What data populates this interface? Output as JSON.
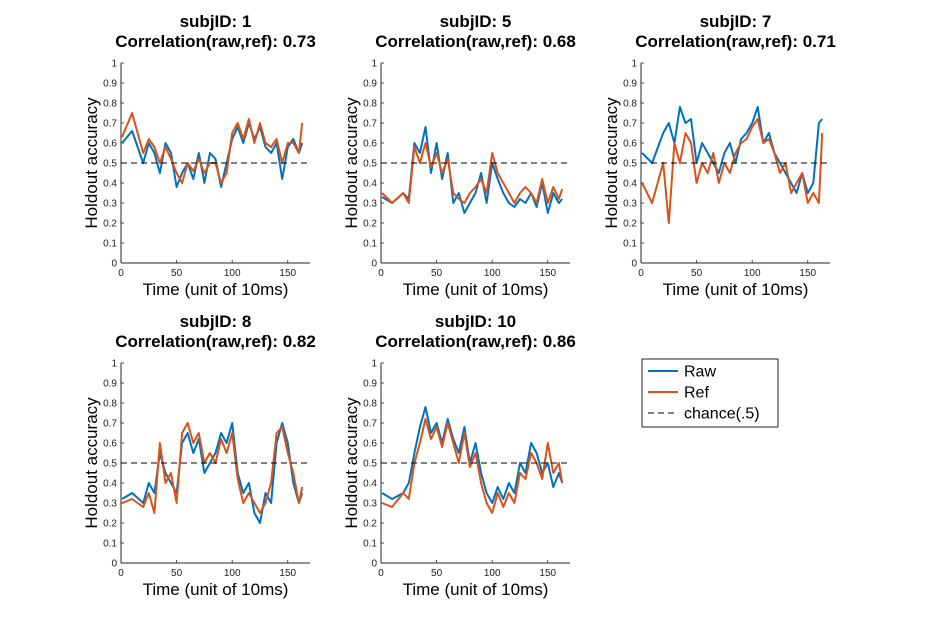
{
  "colors": {
    "raw": "#0072BD",
    "ref": "#D95319",
    "chance": "#000000",
    "axis": "#262626",
    "legend_border": "#262626"
  },
  "legend": {
    "placement": "right of bottom row",
    "entries": [
      {
        "label": "Raw",
        "color": "#0072BD",
        "style": "solid"
      },
      {
        "label": "Ref",
        "color": "#D95319",
        "style": "solid"
      },
      {
        "label": "chance(.5)",
        "color": "#000000",
        "style": "dashed"
      }
    ]
  },
  "chart_data": [
    {
      "type": "line",
      "title": [
        "subjID: 1",
        "Correlation(raw,ref): 0.73"
      ],
      "xlabel": "Time (unit of 10ms)",
      "ylabel": "Holdout accuracy",
      "xlim": [
        0,
        170
      ],
      "ylim": [
        0,
        1
      ],
      "xticks": [
        0,
        50,
        100,
        150
      ],
      "yticks": [
        0,
        0.1,
        0.2,
        0.3,
        0.4,
        0.5,
        0.6,
        0.7,
        0.8,
        0.9,
        1
      ],
      "chance": 0.5,
      "series": [
        {
          "name": "Raw",
          "x": [
            1,
            10,
            20,
            25,
            30,
            35,
            40,
            45,
            50,
            55,
            60,
            65,
            70,
            75,
            80,
            85,
            90,
            95,
            100,
            105,
            110,
            115,
            120,
            125,
            130,
            135,
            140,
            145,
            150,
            155,
            160,
            163
          ],
          "values": [
            0.6,
            0.66,
            0.5,
            0.6,
            0.55,
            0.45,
            0.6,
            0.55,
            0.38,
            0.45,
            0.5,
            0.42,
            0.55,
            0.4,
            0.55,
            0.52,
            0.38,
            0.5,
            0.62,
            0.68,
            0.6,
            0.7,
            0.62,
            0.68,
            0.58,
            0.55,
            0.6,
            0.42,
            0.58,
            0.62,
            0.55,
            0.6
          ]
        },
        {
          "name": "Ref",
          "x": [
            1,
            10,
            20,
            25,
            30,
            35,
            40,
            45,
            50,
            55,
            60,
            65,
            70,
            75,
            80,
            85,
            90,
            95,
            100,
            105,
            110,
            115,
            120,
            125,
            130,
            135,
            140,
            145,
            150,
            155,
            160,
            163
          ],
          "values": [
            0.63,
            0.75,
            0.55,
            0.62,
            0.58,
            0.5,
            0.58,
            0.52,
            0.45,
            0.4,
            0.5,
            0.46,
            0.52,
            0.45,
            0.5,
            0.5,
            0.4,
            0.45,
            0.65,
            0.7,
            0.62,
            0.72,
            0.6,
            0.7,
            0.6,
            0.58,
            0.62,
            0.5,
            0.6,
            0.6,
            0.55,
            0.7
          ]
        }
      ]
    },
    {
      "type": "line",
      "title": [
        "subjID: 5",
        "Correlation(raw,ref): 0.68"
      ],
      "xlabel": "Time (unit of 10ms)",
      "ylabel": "Holdout accuracy",
      "xlim": [
        0,
        170
      ],
      "ylim": [
        0,
        1
      ],
      "xticks": [
        0,
        50,
        100,
        150
      ],
      "yticks": [
        0,
        0.1,
        0.2,
        0.3,
        0.4,
        0.5,
        0.6,
        0.7,
        0.8,
        0.9,
        1
      ],
      "chance": 0.5,
      "series": [
        {
          "name": "Raw",
          "x": [
            1,
            10,
            20,
            25,
            30,
            35,
            40,
            45,
            50,
            55,
            60,
            65,
            70,
            75,
            80,
            85,
            90,
            95,
            100,
            105,
            110,
            115,
            120,
            125,
            130,
            135,
            140,
            145,
            150,
            155,
            160,
            163
          ],
          "values": [
            0.33,
            0.3,
            0.35,
            0.32,
            0.6,
            0.55,
            0.68,
            0.45,
            0.6,
            0.42,
            0.55,
            0.3,
            0.35,
            0.25,
            0.3,
            0.35,
            0.45,
            0.3,
            0.5,
            0.42,
            0.35,
            0.3,
            0.28,
            0.32,
            0.3,
            0.35,
            0.28,
            0.4,
            0.25,
            0.35,
            0.3,
            0.32
          ]
        },
        {
          "name": "Ref",
          "x": [
            1,
            10,
            20,
            25,
            30,
            35,
            40,
            45,
            50,
            55,
            60,
            65,
            70,
            75,
            80,
            85,
            90,
            95,
            100,
            105,
            110,
            115,
            120,
            125,
            130,
            135,
            140,
            145,
            150,
            155,
            160,
            163
          ],
          "values": [
            0.35,
            0.3,
            0.35,
            0.3,
            0.58,
            0.5,
            0.6,
            0.48,
            0.55,
            0.45,
            0.52,
            0.35,
            0.32,
            0.3,
            0.35,
            0.38,
            0.42,
            0.35,
            0.55,
            0.45,
            0.4,
            0.35,
            0.3,
            0.35,
            0.38,
            0.35,
            0.3,
            0.42,
            0.3,
            0.38,
            0.32,
            0.37
          ]
        }
      ]
    },
    {
      "type": "line",
      "title": [
        "subjID: 7",
        "Correlation(raw,ref): 0.71"
      ],
      "xlabel": "Time (unit of 10ms)",
      "ylabel": "Holdout accuracy",
      "xlim": [
        0,
        170
      ],
      "ylim": [
        0,
        1
      ],
      "xticks": [
        0,
        50,
        100,
        150
      ],
      "yticks": [
        0,
        0.1,
        0.2,
        0.3,
        0.4,
        0.5,
        0.6,
        0.7,
        0.8,
        0.9,
        1
      ],
      "chance": 0.5,
      "series": [
        {
          "name": "Raw",
          "x": [
            1,
            10,
            20,
            25,
            30,
            35,
            40,
            45,
            50,
            55,
            60,
            65,
            70,
            75,
            80,
            85,
            90,
            95,
            100,
            105,
            110,
            115,
            120,
            125,
            130,
            135,
            140,
            145,
            150,
            155,
            160,
            163
          ],
          "values": [
            0.55,
            0.5,
            0.65,
            0.7,
            0.6,
            0.78,
            0.7,
            0.72,
            0.5,
            0.6,
            0.55,
            0.5,
            0.45,
            0.55,
            0.6,
            0.5,
            0.62,
            0.65,
            0.7,
            0.78,
            0.6,
            0.65,
            0.55,
            0.5,
            0.45,
            0.4,
            0.35,
            0.45,
            0.35,
            0.4,
            0.7,
            0.72
          ]
        },
        {
          "name": "Ref",
          "x": [
            1,
            10,
            20,
            25,
            30,
            35,
            40,
            45,
            50,
            55,
            60,
            65,
            70,
            75,
            80,
            85,
            90,
            95,
            100,
            105,
            110,
            115,
            120,
            125,
            130,
            135,
            140,
            145,
            150,
            155,
            160,
            163
          ],
          "values": [
            0.4,
            0.3,
            0.5,
            0.2,
            0.6,
            0.5,
            0.65,
            0.6,
            0.4,
            0.5,
            0.45,
            0.55,
            0.4,
            0.5,
            0.45,
            0.55,
            0.6,
            0.62,
            0.68,
            0.72,
            0.6,
            0.62,
            0.55,
            0.45,
            0.5,
            0.35,
            0.4,
            0.45,
            0.3,
            0.35,
            0.3,
            0.65
          ]
        }
      ]
    },
    {
      "type": "line",
      "title": [
        "subjID: 8",
        "Correlation(raw,ref): 0.82"
      ],
      "xlabel": "Time (unit of 10ms)",
      "ylabel": "Holdout accuracy",
      "xlim": [
        0,
        170
      ],
      "ylim": [
        0,
        1
      ],
      "xticks": [
        0,
        50,
        100,
        150
      ],
      "yticks": [
        0,
        0.1,
        0.2,
        0.3,
        0.4,
        0.5,
        0.6,
        0.7,
        0.8,
        0.9,
        1
      ],
      "chance": 0.5,
      "series": [
        {
          "name": "Raw",
          "x": [
            1,
            10,
            20,
            25,
            30,
            35,
            40,
            45,
            50,
            55,
            60,
            65,
            70,
            75,
            80,
            85,
            90,
            95,
            100,
            105,
            110,
            115,
            120,
            125,
            130,
            135,
            140,
            145,
            150,
            155,
            160,
            163
          ],
          "values": [
            0.32,
            0.35,
            0.3,
            0.4,
            0.35,
            0.55,
            0.45,
            0.4,
            0.35,
            0.6,
            0.65,
            0.55,
            0.62,
            0.45,
            0.5,
            0.55,
            0.65,
            0.6,
            0.7,
            0.45,
            0.35,
            0.4,
            0.25,
            0.2,
            0.35,
            0.3,
            0.6,
            0.7,
            0.6,
            0.4,
            0.3,
            0.35
          ]
        },
        {
          "name": "Ref",
          "x": [
            1,
            10,
            20,
            25,
            30,
            35,
            40,
            45,
            50,
            55,
            60,
            65,
            70,
            75,
            80,
            85,
            90,
            95,
            100,
            105,
            110,
            115,
            120,
            125,
            130,
            135,
            140,
            145,
            150,
            155,
            160,
            163
          ],
          "values": [
            0.3,
            0.32,
            0.28,
            0.35,
            0.25,
            0.6,
            0.4,
            0.45,
            0.3,
            0.65,
            0.7,
            0.6,
            0.65,
            0.5,
            0.55,
            0.5,
            0.62,
            0.55,
            0.65,
            0.42,
            0.3,
            0.35,
            0.3,
            0.25,
            0.3,
            0.4,
            0.65,
            0.68,
            0.55,
            0.45,
            0.3,
            0.38
          ]
        }
      ]
    },
    {
      "type": "line",
      "title": [
        "subjID: 10",
        "Correlation(raw,ref): 0.86"
      ],
      "xlabel": "Time (unit of 10ms)",
      "ylabel": "Holdout accuracy",
      "xlim": [
        0,
        170
      ],
      "ylim": [
        0,
        1
      ],
      "xticks": [
        0,
        50,
        100,
        150
      ],
      "yticks": [
        0,
        0.1,
        0.2,
        0.3,
        0.4,
        0.5,
        0.6,
        0.7,
        0.8,
        0.9,
        1
      ],
      "chance": 0.5,
      "series": [
        {
          "name": "Raw",
          "x": [
            1,
            10,
            20,
            25,
            30,
            35,
            40,
            45,
            50,
            55,
            60,
            65,
            70,
            75,
            80,
            85,
            90,
            95,
            100,
            105,
            110,
            115,
            120,
            125,
            130,
            135,
            140,
            145,
            150,
            155,
            160,
            163
          ],
          "values": [
            0.35,
            0.32,
            0.35,
            0.4,
            0.55,
            0.68,
            0.78,
            0.65,
            0.7,
            0.6,
            0.72,
            0.62,
            0.55,
            0.68,
            0.5,
            0.6,
            0.45,
            0.35,
            0.3,
            0.38,
            0.32,
            0.4,
            0.35,
            0.5,
            0.45,
            0.6,
            0.55,
            0.45,
            0.5,
            0.38,
            0.45,
            0.4
          ]
        },
        {
          "name": "Ref",
          "x": [
            1,
            10,
            20,
            25,
            30,
            35,
            40,
            45,
            50,
            55,
            60,
            65,
            70,
            75,
            80,
            85,
            90,
            95,
            100,
            105,
            110,
            115,
            120,
            125,
            130,
            135,
            140,
            145,
            150,
            155,
            160,
            163
          ],
          "values": [
            0.3,
            0.28,
            0.35,
            0.32,
            0.5,
            0.6,
            0.72,
            0.62,
            0.68,
            0.58,
            0.7,
            0.6,
            0.5,
            0.65,
            0.48,
            0.55,
            0.4,
            0.3,
            0.25,
            0.35,
            0.28,
            0.35,
            0.3,
            0.45,
            0.42,
            0.55,
            0.5,
            0.42,
            0.6,
            0.45,
            0.5,
            0.4
          ]
        }
      ]
    }
  ]
}
